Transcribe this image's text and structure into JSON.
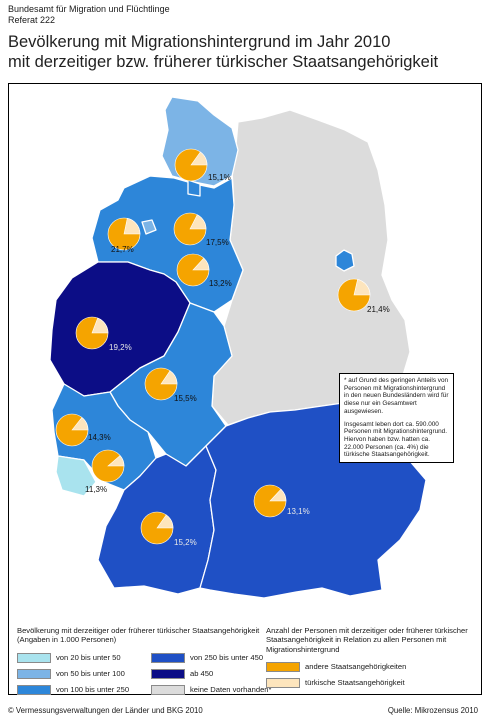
{
  "header": {
    "agency_line1": "Bundesamt für Migration und Flüchtlinge",
    "agency_line2": "Referat 222",
    "title_line1": "Bevölkerung mit Migrationshintergrund im Jahr 2010",
    "title_line2": "mit derzeitiger bzw. früherer türkischer Staatsangehörigkeit"
  },
  "colors": {
    "class_20_50": "#a9e3ee",
    "class_50_100": "#7cb4e6",
    "class_100_250": "#2d86d9",
    "class_250_450": "#1f50c5",
    "class_450_plus": "#0c0d86",
    "no_data": "#dcdcdc",
    "other_citizenship": "#f5a400",
    "turkish_citizenship": "#fde5bd"
  },
  "regions": [
    {
      "id": "schleswig-holstein",
      "fill_class": "class_50_100",
      "turkish_share_pct": 15.1,
      "label": "15,1%"
    },
    {
      "id": "niedersachsen",
      "fill_class": "class_100_250",
      "turkish_share_pct": 21.7,
      "label": "21,7%"
    },
    {
      "id": "hamburg",
      "fill_class": "class_100_250",
      "turkish_share_pct": 17.5,
      "label": "17,5%"
    },
    {
      "id": "bremen",
      "fill_class": "class_50_100",
      "turkish_share_pct": 13.2,
      "label": "13,2%"
    },
    {
      "id": "berlin",
      "fill_class": "class_100_250",
      "turkish_share_pct": 21.4,
      "label": "21,4%"
    },
    {
      "id": "nordrhein-westfalen",
      "fill_class": "class_450_plus",
      "turkish_share_pct": 19.2,
      "label": "19,2%"
    },
    {
      "id": "hessen",
      "fill_class": "class_100_250",
      "turkish_share_pct": 15.5,
      "label": "15,5%"
    },
    {
      "id": "rheinland-pfalz",
      "fill_class": "class_100_250",
      "turkish_share_pct": 14.3,
      "label": "14,3%"
    },
    {
      "id": "saarland",
      "fill_class": "class_20_50",
      "turkish_share_pct": 11.3,
      "label": "11,3%"
    },
    {
      "id": "baden-wuerttemberg",
      "fill_class": "class_250_450",
      "turkish_share_pct": 15.2,
      "label": "15,2%"
    },
    {
      "id": "bayern",
      "fill_class": "class_250_450",
      "turkish_share_pct": 13.1,
      "label": "13,1%"
    },
    {
      "id": "neue-bundeslaender",
      "fill_class": "no_data"
    }
  ],
  "note": {
    "para1": "* auf Grund des geringen Anteils von Personen mit Migrationshintergrund in den neuen Bundesländern wird für diese nur ein Gesamtwert ausgewiesen.",
    "para2": "Insgesamt leben dort ca. 590.000 Personen mit Migrationshintergrund. Hiervon haben bzw. hatten ca. 22.000 Personen (ca. 4%) die türkische Staatsangehörigkeit."
  },
  "legend_left": {
    "title": "Bevölkerung mit derzeitiger oder früherer türkischer Staatsangehörigkeit (Angaben in 1.000 Personen)",
    "items": [
      {
        "label": "von 20 bis unter 50",
        "color_key": "class_20_50"
      },
      {
        "label": "von 50 bis unter 100",
        "color_key": "class_50_100"
      },
      {
        "label": "von 100 bis unter 250",
        "color_key": "class_100_250"
      },
      {
        "label": "von 250 bis unter 450",
        "color_key": "class_250_450"
      },
      {
        "label": "ab 450",
        "color_key": "class_450_plus"
      },
      {
        "label": "keine Daten vorhanden*",
        "color_key": "no_data"
      }
    ]
  },
  "legend_right": {
    "title": "Anzahl der Personen mit derzeitiger oder früherer türkischer Staatsangehörigkeit in Relation zu allen Personen mit Migrationshintergrund",
    "items": [
      {
        "label": "andere Staatsangehörigkeiten",
        "color_key": "other_citizenship"
      },
      {
        "label": "türkische Staatsangehörigkeit",
        "color_key": "turkish_citizenship"
      }
    ]
  },
  "footer": {
    "copyright": "© Vermessungsverwaltungen der Länder und BKG 2010",
    "source": "Quelle: Mikrozensus 2010"
  }
}
